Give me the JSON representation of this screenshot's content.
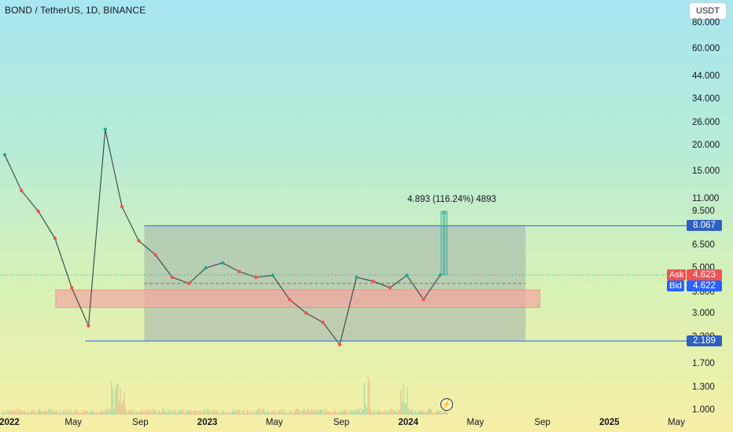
{
  "header": {
    "title": "BOND / TetherUS, 1D, BINANCE",
    "currency_button": "USDT"
  },
  "colors": {
    "up": "#26a69a",
    "down": "#ef5350",
    "level_line": "#2962ff",
    "level_box": "#2f5fbf",
    "range_box": "#9aa3ab",
    "demand_zone": "#f4a6a0",
    "ask": "#ef5350",
    "bid": "#2962ff"
  },
  "price_scale": {
    "ticks": [
      "80.000",
      "60.000",
      "44.000",
      "34.000",
      "26.000",
      "20.000",
      "15.000",
      "11.000",
      "9.500",
      "6.500",
      "5.000",
      "3.800",
      "3.000",
      "2.300",
      "1.700",
      "1.300",
      "1.000"
    ]
  },
  "time_scale": {
    "ticks": [
      "2022",
      "May",
      "Sep",
      "2023",
      "May",
      "Sep",
      "2024",
      "May",
      "Sep",
      "2025",
      "May"
    ]
  },
  "markers": {
    "upper_level": "8.067",
    "lower_level": "2.189",
    "ask_label": "Ask",
    "ask_value": "4.623",
    "bid_label": "Bid",
    "bid_value": "4.622",
    "measure": "4.893 (116.24%) 4893"
  },
  "chart_data": {
    "type": "line",
    "title": "BOND / TetherUS, 1D, BINANCE",
    "y_scale": "log",
    "ylim": [
      0.95,
      95
    ],
    "x": [
      "2022-01",
      "2022-02",
      "2022-03",
      "2022-04",
      "2022-05",
      "2022-06",
      "2022-07",
      "2022-08",
      "2022-09",
      "2022-10",
      "2022-11",
      "2022-12",
      "2023-01",
      "2023-02",
      "2023-03",
      "2023-04",
      "2023-05",
      "2023-06",
      "2023-07",
      "2023-08",
      "2023-09",
      "2023-10",
      "2023-11",
      "2023-12",
      "2024-01",
      "2024-02",
      "2024-03"
    ],
    "series": [
      {
        "values": [
          18.0,
          12.0,
          9.5,
          7.0,
          4.0,
          2.6,
          24.0,
          10.0,
          6.8,
          5.8,
          4.5,
          4.2,
          5.0,
          5.3,
          4.8,
          4.5,
          4.6,
          3.5,
          3.0,
          2.7,
          2.1,
          4.5,
          4.3,
          4.0,
          4.6,
          3.5,
          4.62
        ]
      }
    ],
    "levels": [
      8.067,
      2.189
    ],
    "range_box": {
      "x_start": "2022-09",
      "x_end": "2024-08",
      "high": 8.067,
      "low": 2.189
    },
    "demand_zone": {
      "x_start": "2022-04",
      "x_end": "2024-08",
      "high": 3.9,
      "low": 3.2
    },
    "measure": {
      "text": "4.893 (116.24%) 4893",
      "from": 4.622,
      "to": 9.5
    },
    "last_price": 4.623
  }
}
